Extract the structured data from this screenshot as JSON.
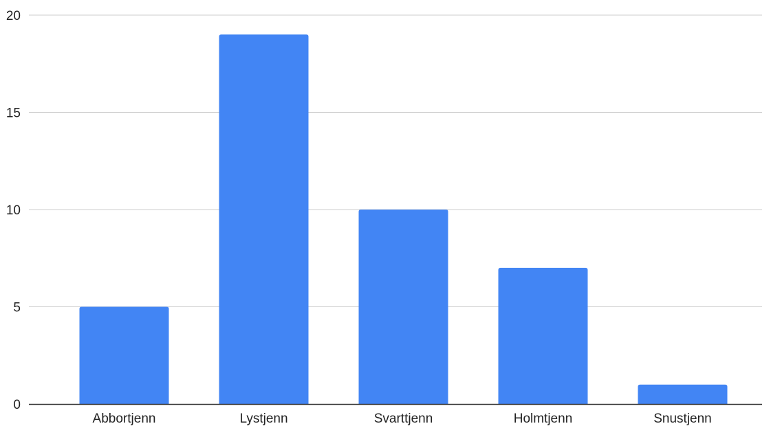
{
  "chart_data": {
    "type": "bar",
    "categories": [
      "Abbortjenn",
      "Lystjenn",
      "Svarttjenn",
      "Holmtjenn",
      "Snustjenn"
    ],
    "values": [
      5,
      19,
      10,
      7,
      1
    ],
    "ylim": [
      0,
      20
    ],
    "yticks": [
      0,
      5,
      10,
      15,
      20
    ],
    "grid": true,
    "legend": "none",
    "colors": {
      "bar": "#4285f4",
      "grid": "#cccccc",
      "axis": "#333333",
      "text": "#222222"
    }
  }
}
